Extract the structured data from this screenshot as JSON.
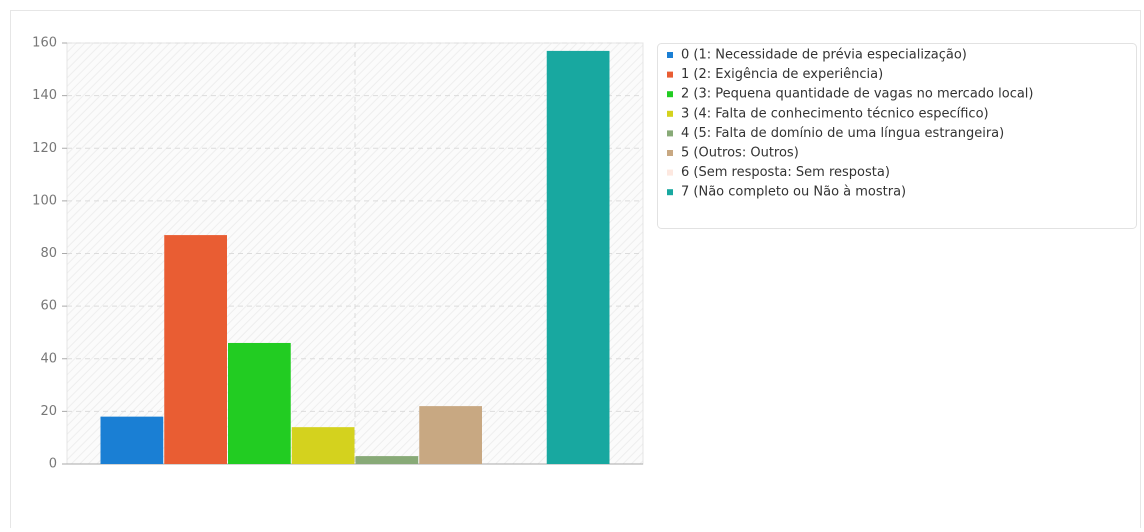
{
  "chart_data": {
    "type": "bar",
    "series": [
      {
        "name": "0 (1: Necessidade de prévia especialização)",
        "color": "#1a7fd4",
        "values": [
          18
        ]
      },
      {
        "name": "1 (2: Exigência de experiência)",
        "color": "#e95d33",
        "values": [
          87
        ]
      },
      {
        "name": "2 (3: Pequena quantidade de vagas no mercado local)",
        "color": "#22cc22",
        "values": [
          46
        ]
      },
      {
        "name": "3 (4: Falta de conhecimento técnico específico)",
        "color": "#d4d21e",
        "values": [
          14
        ]
      },
      {
        "name": "4 (5: Falta de domínio de uma língua estrangeira)",
        "color": "#88aa77",
        "values": [
          3
        ]
      },
      {
        "name": "5 (Outros: Outros)",
        "color": "#c8a882",
        "values": [
          22
        ]
      },
      {
        "name": "6 (Sem resposta: Sem resposta)",
        "color": "#fde8e0",
        "values": [
          0
        ]
      },
      {
        "name": "7 (Não completo ou Não à mostra)",
        "color": "#18a8a0",
        "values": [
          157
        ]
      }
    ],
    "ylim": [
      0,
      160
    ],
    "yticks": [
      0,
      20,
      40,
      60,
      80,
      100,
      120,
      140,
      160
    ],
    "grid": true,
    "legend": "right"
  }
}
